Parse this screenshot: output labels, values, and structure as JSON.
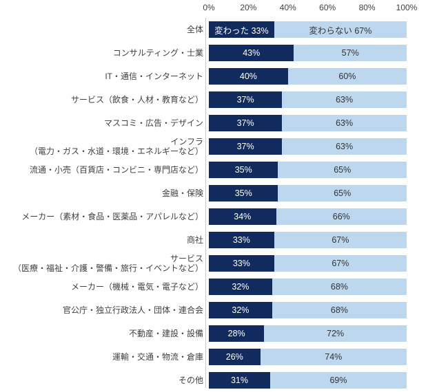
{
  "colors": {
    "changed": "#122B5E",
    "unchanged": "#BDD7EE",
    "axis_line": "#C9C9C9",
    "label_text": "#404040",
    "bar_text_on_dark": "#FFFFFF",
    "bar_text_on_light": "#333333"
  },
  "axis": {
    "ticks": [
      "0%",
      "20%",
      "40%",
      "60%",
      "80%",
      "100%"
    ]
  },
  "chart_data": {
    "type": "bar",
    "orientation": "horizontal",
    "stacked": true,
    "xlim": [
      0,
      100
    ],
    "x_ticks": [
      "0%",
      "20%",
      "40%",
      "60%",
      "80%",
      "100%"
    ],
    "value_suffix": "%",
    "series_name_shown_on_first_row_only": true,
    "categories": [
      "全体",
      "コンサルティング・士業",
      "IT・通信・インターネット",
      "サービス（飲食・人材・教育など）",
      "マスコミ・広告・デザイン",
      "インフラ\n（電力・ガス・水道・環境・エネルギーなど）",
      "流通・小売（百貨店・コンビニ・専門店など）",
      "金融・保険",
      "メーカー（素材・食品・医薬品・アパレルなど）",
      "商社",
      "サービス\n（医療・福祉・介護・警備・旅行・イベントなど）",
      "メーカー（機械・電気・電子など）",
      "官公庁・独立行政法人・団体・連合会",
      "不動産・建設・設備",
      "運輸・交通・物流・倉庫",
      "その他"
    ],
    "series": [
      {
        "name": "変わった",
        "color": "#122B5E",
        "values": [
          33,
          43,
          40,
          37,
          37,
          37,
          35,
          35,
          34,
          33,
          33,
          32,
          32,
          28,
          26,
          31
        ]
      },
      {
        "name": "変わらない",
        "color": "#BDD7EE",
        "values": [
          67,
          57,
          60,
          63,
          63,
          63,
          65,
          65,
          66,
          67,
          67,
          68,
          68,
          72,
          74,
          69
        ]
      }
    ]
  }
}
